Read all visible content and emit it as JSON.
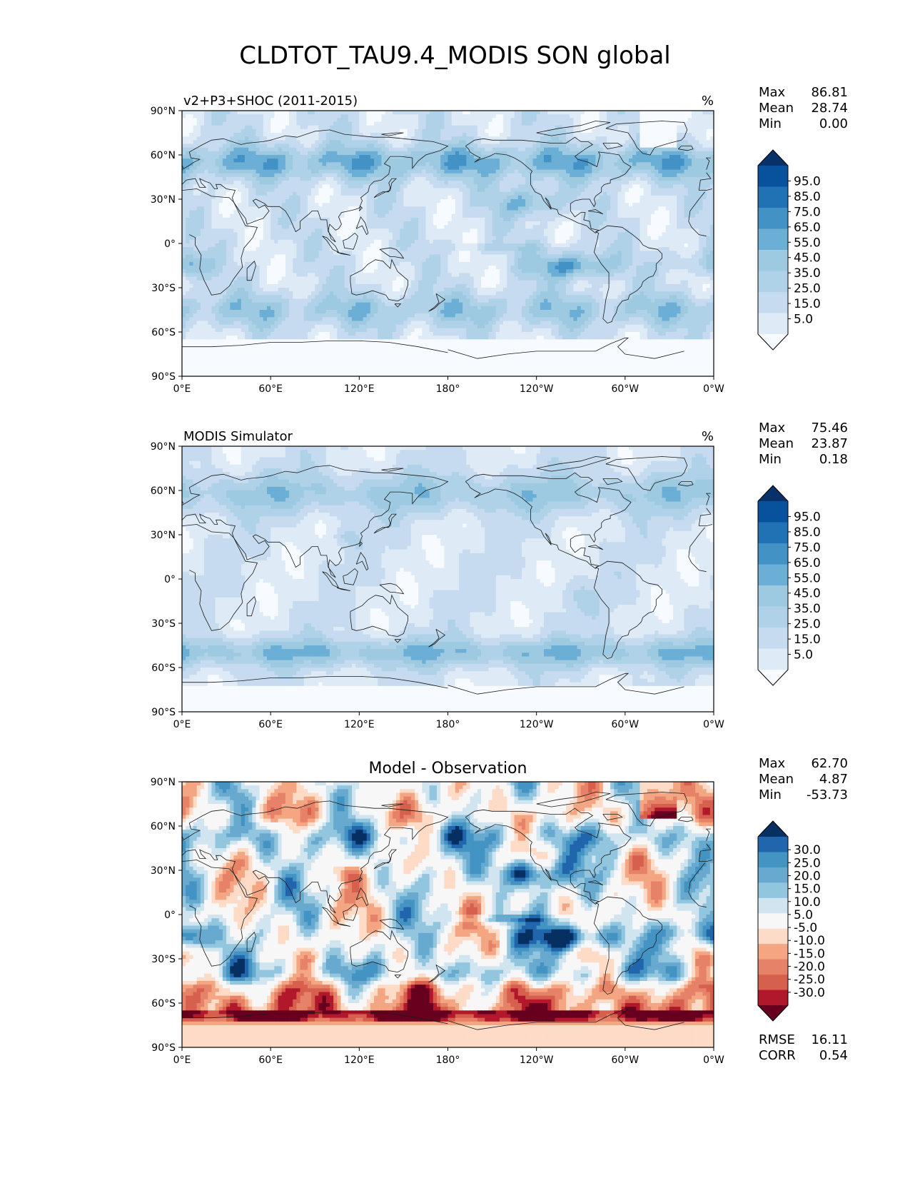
{
  "title": "CLDTOT_TAU9.4_MODIS SON global",
  "colors": {
    "blues": [
      "#f7fbff",
      "#deebf7",
      "#c6dbef",
      "#b0d2e8",
      "#9ecae1",
      "#6baed6",
      "#4292c6",
      "#2171b5",
      "#08519c",
      "#08306b"
    ],
    "diff": [
      "#67001f",
      "#b2182b",
      "#d6604d",
      "#e58268",
      "#f4a582",
      "#fddbc7",
      "#f7f7f7",
      "#d1e5f0",
      "#92c5de",
      "#67a9cf",
      "#4393c3",
      "#2166ac",
      "#053061"
    ],
    "coast": "#1a1a1a"
  },
  "axes": {
    "lat_ticks": [
      "90°N",
      "60°N",
      "30°N",
      "0°",
      "30°S",
      "60°S",
      "90°S"
    ],
    "lon_ticks": [
      "0°E",
      "60°E",
      "120°E",
      "180°",
      "120°W",
      "60°W",
      "0°W"
    ]
  },
  "panels": [
    {
      "id": "test",
      "left_title": "v2+P3+SHOC (2011-2015)",
      "center_title": "",
      "units": "%",
      "stats": [
        {
          "label": "Max",
          "value": "86.81"
        },
        {
          "label": "Mean",
          "value": "28.74"
        },
        {
          "label": "Min",
          "value": "0.00"
        }
      ],
      "colorbar_labels": [
        "95.0",
        "85.0",
        "75.0",
        "65.0",
        "55.0",
        "45.0",
        "35.0",
        "25.0",
        "15.0",
        "5.0"
      ],
      "extra_stats": []
    },
    {
      "id": "reference",
      "left_title": "MODIS Simulator",
      "center_title": "",
      "units": "%",
      "stats": [
        {
          "label": "Max",
          "value": "75.46"
        },
        {
          "label": "Mean",
          "value": "23.87"
        },
        {
          "label": "Min",
          "value": "0.18"
        }
      ],
      "colorbar_labels": [
        "95.0",
        "85.0",
        "75.0",
        "65.0",
        "55.0",
        "45.0",
        "35.0",
        "25.0",
        "15.0",
        "5.0"
      ],
      "extra_stats": []
    },
    {
      "id": "difference",
      "left_title": "",
      "center_title": "Model - Observation",
      "units": "",
      "stats": [
        {
          "label": "Max",
          "value": "62.70"
        },
        {
          "label": "Mean",
          "value": "4.87"
        },
        {
          "label": "Min",
          "value": "-53.73"
        }
      ],
      "colorbar_labels": [
        "30.0",
        "25.0",
        "20.0",
        "15.0",
        "10.0",
        "5.0",
        "-5.0",
        "-10.0",
        "-15.0",
        "-20.0",
        "-25.0",
        "-30.0"
      ],
      "extra_stats": [
        {
          "label": "RMSE",
          "value": "16.11"
        },
        {
          "label": "CORR",
          "value": "0.54"
        }
      ]
    }
  ]
}
